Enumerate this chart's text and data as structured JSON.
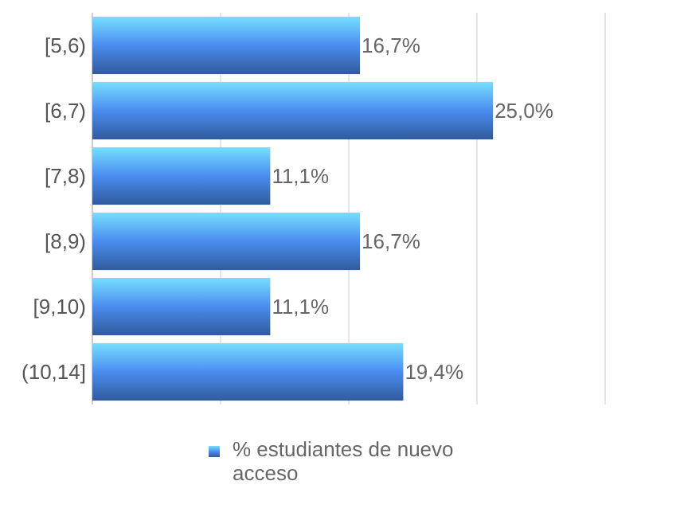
{
  "chart_data": {
    "type": "bar",
    "orientation": "horizontal",
    "categories": [
      "[5,6)",
      "[6,7)",
      "[7,8)",
      "[8,9)",
      "[9,10)",
      "(10,14]"
    ],
    "series": [
      {
        "name": "% estudiantes de nuevo acceso",
        "color": "#4a8cf0",
        "values": [
          16.7,
          25.0,
          11.1,
          16.7,
          11.1,
          19.4
        ],
        "value_labels": [
          "16,7%",
          "25,0%",
          "11,1%",
          "16,7%",
          "11,1%",
          "19,4%"
        ]
      }
    ],
    "xlim": [
      0,
      32
    ],
    "xticks": [
      {
        "value": 0,
        "label": null
      },
      {
        "value": 8,
        "label": null
      },
      {
        "value": 16,
        "label": null
      },
      {
        "value": 24,
        "label": null
      },
      {
        "value": 32,
        "label": null
      }
    ],
    "tick_labels": "y",
    "grid": "x",
    "legend": "bottom"
  }
}
